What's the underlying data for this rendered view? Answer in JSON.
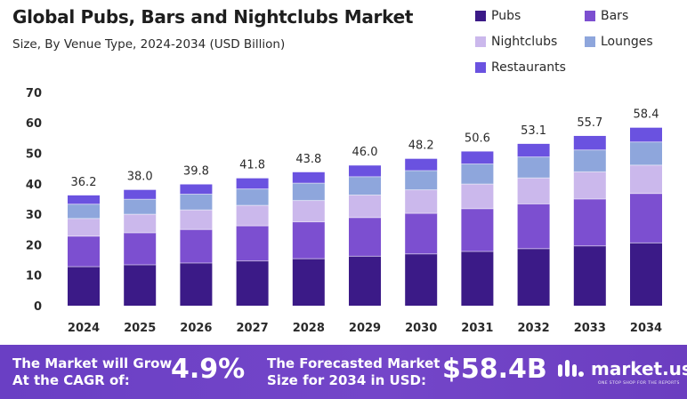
{
  "header": {
    "title": "Global Pubs, Bars and Nightclubs Market",
    "subtitle": "Size, By Venue Type, 2024-2034 (USD Billion)"
  },
  "legend": [
    {
      "label": "Pubs",
      "color": "#3b1a87"
    },
    {
      "label": "Bars",
      "color": "#7c4fd0"
    },
    {
      "label": "Nightclubs",
      "color": "#cbb8ec"
    },
    {
      "label": "Lounges",
      "color": "#8ea6dc"
    },
    {
      "label": "Restaurants",
      "color": "#6a52e0"
    }
  ],
  "chart_data": {
    "type": "bar",
    "stacked": true,
    "categories": [
      "2024",
      "2025",
      "2026",
      "2027",
      "2028",
      "2029",
      "2030",
      "2031",
      "2032",
      "2033",
      "2034"
    ],
    "totals": [
      36.2,
      38.0,
      39.8,
      41.8,
      43.8,
      46.0,
      48.2,
      50.6,
      53.1,
      55.7,
      58.4
    ],
    "total_labels": [
      "36.2",
      "38.0",
      "39.8",
      "41.8",
      "43.8",
      "46.0",
      "48.2",
      "50.6",
      "53.1",
      "55.7",
      "58.4"
    ],
    "series": [
      {
        "name": "Pubs",
        "values": [
          12.8,
          13.4,
          14.0,
          14.7,
          15.4,
          16.2,
          17.0,
          17.8,
          18.7,
          19.6,
          20.6
        ]
      },
      {
        "name": "Bars",
        "values": [
          10.0,
          10.5,
          11.0,
          11.5,
          12.1,
          12.7,
          13.3,
          14.0,
          14.7,
          15.4,
          16.2
        ]
      },
      {
        "name": "Nightclubs",
        "values": [
          5.8,
          6.1,
          6.4,
          6.7,
          7.0,
          7.4,
          7.7,
          8.1,
          8.5,
          8.9,
          9.3
        ]
      },
      {
        "name": "Lounges",
        "values": [
          4.7,
          4.9,
          5.2,
          5.4,
          5.7,
          6.0,
          6.3,
          6.6,
          6.9,
          7.2,
          7.6
        ]
      },
      {
        "name": "Restaurants",
        "values": [
          2.9,
          3.1,
          3.2,
          3.5,
          3.6,
          3.7,
          3.9,
          4.1,
          4.3,
          4.6,
          4.7
        ]
      }
    ],
    "yticks": [
      "0",
      "10",
      "20",
      "30",
      "40",
      "50",
      "60",
      "70"
    ],
    "ylim": [
      0,
      70
    ],
    "grid": false
  },
  "footer": {
    "cagr_label_line1": "The Market will Grow",
    "cagr_label_line2": "At the CAGR of:",
    "cagr_value": "4.9%",
    "forecast_label_line1": "The Forecasted Market",
    "forecast_label_line2": "Size for 2034 in USD:",
    "forecast_value": "$58.4B",
    "brand_name": "market.us",
    "brand_tagline": "ONE STOP SHOP FOR THE REPORTS"
  }
}
